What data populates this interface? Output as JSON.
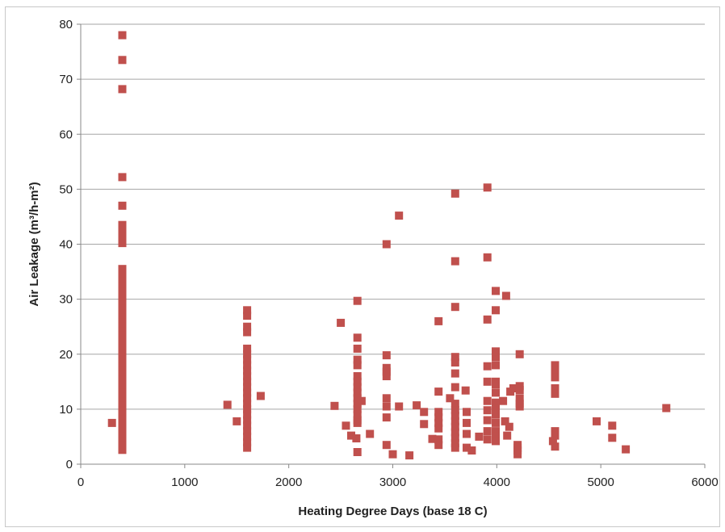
{
  "chart_data": {
    "type": "scatter",
    "title": "",
    "xlabel": "Heating Degree Days (base 18 C)",
    "ylabel": "Air Leakage (m³/h-m²)",
    "xlim": [
      0,
      6000
    ],
    "ylim": [
      0,
      80
    ],
    "xticks": [
      "0",
      "1000",
      "2000",
      "3000",
      "4000",
      "5000",
      "6000"
    ],
    "yticks": [
      "0",
      "10",
      "20",
      "30",
      "40",
      "50",
      "60",
      "70",
      "80"
    ],
    "grid": "horizontal",
    "marker": "square",
    "color": "#c0504d",
    "legend": "none",
    "series": [
      {
        "points": [
          [
            300,
            7.5
          ],
          [
            400,
            78
          ],
          [
            400,
            73.5
          ],
          [
            400,
            68.2
          ],
          [
            400,
            52.2
          ],
          [
            400,
            47
          ],
          [
            400,
            43.5
          ],
          [
            400,
            42.5
          ],
          [
            400,
            41.5
          ],
          [
            400,
            40.2
          ],
          [
            400,
            35.5
          ],
          [
            400,
            34.5
          ],
          [
            400,
            33.2
          ],
          [
            400,
            32.2
          ],
          [
            400,
            31.4
          ],
          [
            400,
            30.6
          ],
          [
            400,
            29.8
          ],
          [
            400,
            29
          ],
          [
            400,
            28.2
          ],
          [
            400,
            27.4
          ],
          [
            400,
            26.6
          ],
          [
            400,
            25.8
          ],
          [
            400,
            25
          ],
          [
            400,
            24.2
          ],
          [
            400,
            23.4
          ],
          [
            400,
            22.6
          ],
          [
            400,
            21.8
          ],
          [
            400,
            21
          ],
          [
            400,
            20.2
          ],
          [
            400,
            19.4
          ],
          [
            400,
            18.6
          ],
          [
            400,
            17.8
          ],
          [
            400,
            17
          ],
          [
            400,
            16.2
          ],
          [
            400,
            15.4
          ],
          [
            400,
            14.6
          ],
          [
            400,
            13.8
          ],
          [
            400,
            13
          ],
          [
            400,
            12.2
          ],
          [
            400,
            11.4
          ],
          [
            400,
            10.6
          ],
          [
            400,
            9.8
          ],
          [
            400,
            9
          ],
          [
            400,
            8.2
          ],
          [
            400,
            7.4
          ],
          [
            400,
            6.6
          ],
          [
            400,
            5.8
          ],
          [
            400,
            5
          ],
          [
            400,
            4.2
          ],
          [
            400,
            3.4
          ],
          [
            400,
            2.6
          ],
          [
            1410,
            10.8
          ],
          [
            1500,
            7.8
          ],
          [
            1600,
            28
          ],
          [
            1600,
            27
          ],
          [
            1600,
            25
          ],
          [
            1600,
            24
          ],
          [
            1600,
            21
          ],
          [
            1600,
            20
          ],
          [
            1600,
            19
          ],
          [
            1600,
            18
          ],
          [
            1600,
            17
          ],
          [
            1600,
            16
          ],
          [
            1600,
            15
          ],
          [
            1600,
            14
          ],
          [
            1600,
            13
          ],
          [
            1600,
            12
          ],
          [
            1600,
            11
          ],
          [
            1600,
            10
          ],
          [
            1600,
            9
          ],
          [
            1600,
            8
          ],
          [
            1600,
            7
          ],
          [
            1600,
            6
          ],
          [
            1600,
            5
          ],
          [
            1600,
            4
          ],
          [
            1600,
            3
          ],
          [
            1730,
            12.4
          ],
          [
            2440,
            10.6
          ],
          [
            2500,
            25.7
          ],
          [
            2550,
            7
          ],
          [
            2600,
            5.2
          ],
          [
            2650,
            4.7
          ],
          [
            2660,
            29.7
          ],
          [
            2660,
            23
          ],
          [
            2660,
            21
          ],
          [
            2660,
            19
          ],
          [
            2660,
            18
          ],
          [
            2660,
            16
          ],
          [
            2660,
            15
          ],
          [
            2660,
            14
          ],
          [
            2660,
            13
          ],
          [
            2660,
            12
          ],
          [
            2660,
            11
          ],
          [
            2660,
            10
          ],
          [
            2660,
            9
          ],
          [
            2660,
            8
          ],
          [
            2660,
            7.5
          ],
          [
            2660,
            2.2
          ],
          [
            2700,
            11.5
          ],
          [
            2780,
            5.5
          ],
          [
            2940,
            40
          ],
          [
            2940,
            19.8
          ],
          [
            2940,
            17.5
          ],
          [
            2940,
            16.8
          ],
          [
            2940,
            16
          ],
          [
            2940,
            12
          ],
          [
            2940,
            10.5
          ],
          [
            2940,
            8.5
          ],
          [
            2940,
            3.5
          ],
          [
            3000,
            1.8
          ],
          [
            3060,
            45.2
          ],
          [
            3060,
            10.5
          ],
          [
            3160,
            1.6
          ],
          [
            3230,
            10.7
          ],
          [
            3300,
            9.5
          ],
          [
            3300,
            7.3
          ],
          [
            3380,
            4.6
          ],
          [
            3440,
            26
          ],
          [
            3440,
            13.2
          ],
          [
            3440,
            9.5
          ],
          [
            3440,
            8.5
          ],
          [
            3440,
            7.5
          ],
          [
            3440,
            6.5
          ],
          [
            3440,
            4.5
          ],
          [
            3440,
            3.5
          ],
          [
            3550,
            12
          ],
          [
            3600,
            49.2
          ],
          [
            3600,
            36.9
          ],
          [
            3600,
            28.6
          ],
          [
            3600,
            19.5
          ],
          [
            3600,
            18.5
          ],
          [
            3600,
            16.5
          ],
          [
            3600,
            14
          ],
          [
            3600,
            11
          ],
          [
            3600,
            9.8
          ],
          [
            3600,
            8.8
          ],
          [
            3600,
            7.8
          ],
          [
            3600,
            6.8
          ],
          [
            3600,
            5.8
          ],
          [
            3600,
            4.8
          ],
          [
            3600,
            3.8
          ],
          [
            3600,
            3
          ],
          [
            3700,
            13.4
          ],
          [
            3710,
            9.5
          ],
          [
            3710,
            7.5
          ],
          [
            3710,
            5.5
          ],
          [
            3710,
            3
          ],
          [
            3760,
            2.5
          ],
          [
            3830,
            5
          ],
          [
            3910,
            50.3
          ],
          [
            3910,
            37.6
          ],
          [
            3910,
            26.3
          ],
          [
            3910,
            17.8
          ],
          [
            3910,
            15
          ],
          [
            3910,
            11.5
          ],
          [
            3910,
            9.8
          ],
          [
            3910,
            8
          ],
          [
            3910,
            6
          ],
          [
            3910,
            4.5
          ],
          [
            3990,
            31.5
          ],
          [
            3990,
            28
          ],
          [
            3990,
            20.5
          ],
          [
            3990,
            19.5
          ],
          [
            3990,
            18
          ],
          [
            3990,
            15
          ],
          [
            3990,
            14.5
          ],
          [
            3990,
            13
          ],
          [
            3990,
            11.2
          ],
          [
            3990,
            10
          ],
          [
            3990,
            9
          ],
          [
            3990,
            7.5
          ],
          [
            3990,
            6
          ],
          [
            3990,
            5
          ],
          [
            3990,
            4.2
          ],
          [
            4060,
            11.5
          ],
          [
            4080,
            7.8
          ],
          [
            4090,
            30.6
          ],
          [
            4100,
            5.2
          ],
          [
            4120,
            6.8
          ],
          [
            4130,
            13.2
          ],
          [
            4160,
            13.8
          ],
          [
            4200,
            3.5
          ],
          [
            4200,
            3
          ],
          [
            4200,
            2.5
          ],
          [
            4200,
            1.8
          ],
          [
            4220,
            20
          ],
          [
            4220,
            14.2
          ],
          [
            4220,
            13.5
          ],
          [
            4220,
            12
          ],
          [
            4220,
            11
          ],
          [
            4220,
            10.5
          ],
          [
            4540,
            4.2
          ],
          [
            4560,
            18
          ],
          [
            4560,
            17
          ],
          [
            4560,
            15.8
          ],
          [
            4560,
            13.8
          ],
          [
            4560,
            12.8
          ],
          [
            4560,
            6
          ],
          [
            4560,
            5.2
          ],
          [
            4560,
            3.2
          ],
          [
            4960,
            7.8
          ],
          [
            5110,
            7
          ],
          [
            5110,
            4.8
          ],
          [
            5240,
            2.7
          ],
          [
            5630,
            10.2
          ]
        ]
      }
    ]
  }
}
